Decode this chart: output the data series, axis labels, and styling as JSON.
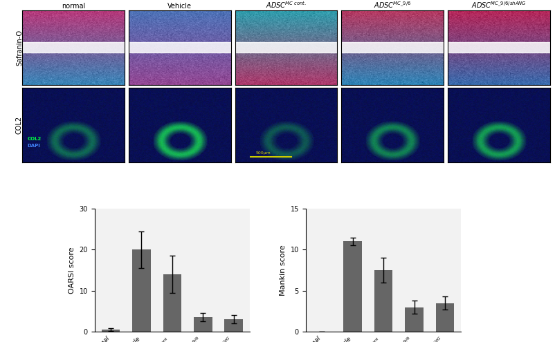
{
  "oarsi_values": [
    0.5,
    20.0,
    14.0,
    3.5,
    3.0
  ],
  "oarsi_errors": [
    0.3,
    4.5,
    4.5,
    1.0,
    1.0
  ],
  "mankin_values": [
    0.0,
    11.0,
    7.5,
    3.0,
    3.5
  ],
  "mankin_errors": [
    0.0,
    0.5,
    1.5,
    0.8,
    0.8
  ],
  "oarsi_ylabel": "OARSI score",
  "mankin_ylabel": "Mankin score",
  "oarsi_ylim": [
    0,
    30
  ],
  "mankin_ylim": [
    0,
    15
  ],
  "oarsi_yticks": [
    0,
    10,
    20,
    30
  ],
  "mankin_yticks": [
    0,
    5,
    10,
    15
  ],
  "bar_color": "#666666",
  "bar_width": 0.6,
  "col_labels": [
    "normal",
    "Vehicle",
    "ADSC$^{MC\\ cont.}$",
    "ADSC$^{MC\\_9/6}$",
    "ADSC$^{MC\\_9/6/shANG}$"
  ],
  "row_labels": [
    "Safranin-O",
    "COL2"
  ],
  "background_color": "#f2f2f2",
  "fig_bg": "#ffffff"
}
